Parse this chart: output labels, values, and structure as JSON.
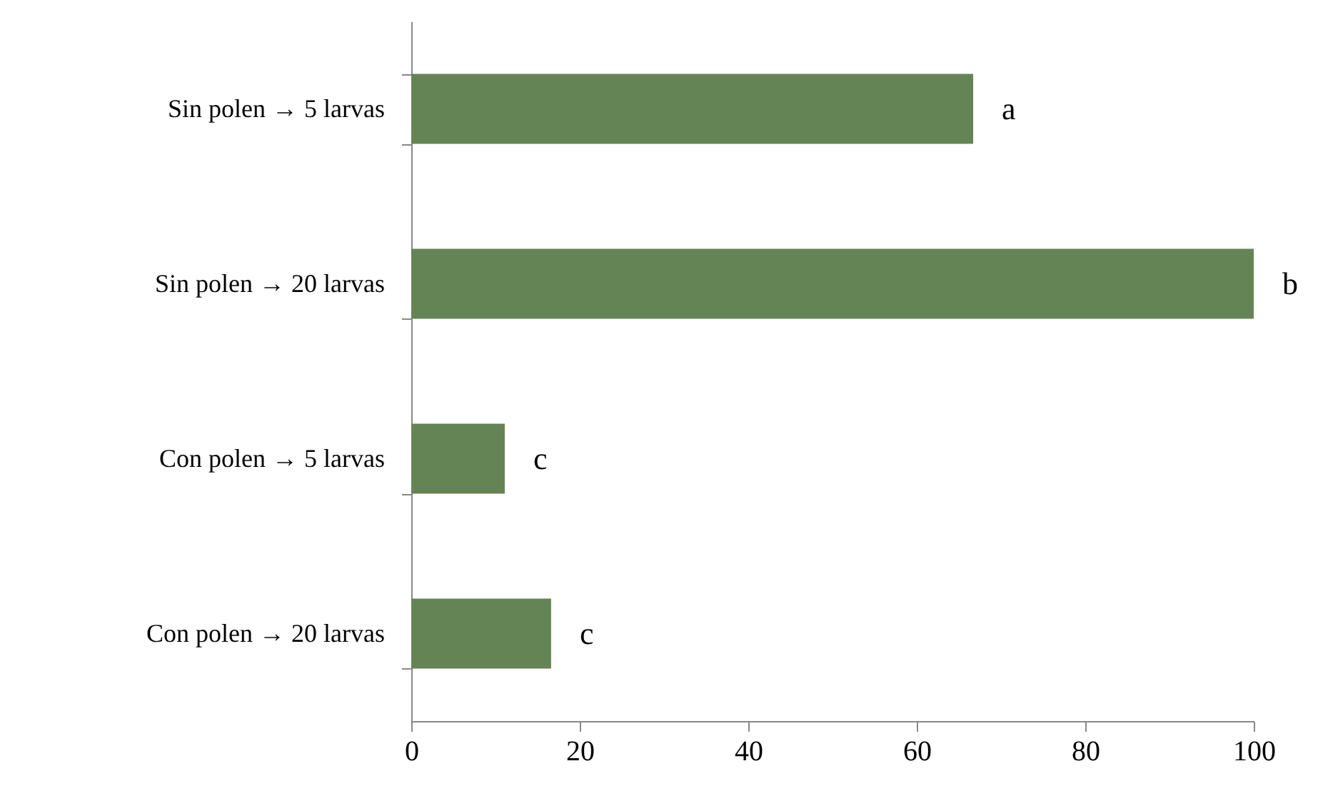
{
  "chart_data": {
    "type": "bar",
    "orientation": "horizontal",
    "categories": [
      "Sin polen → 5 larvas",
      "Sin polen → 20 larvas",
      "Con polen → 5 larvas",
      "Con polen → 20 larvas"
    ],
    "values": [
      66.7,
      100,
      11.1,
      16.6
    ],
    "color": "#658455",
    "xlim": [
      0,
      100
    ],
    "xticks": [
      0,
      20,
      40,
      60,
      80,
      100
    ],
    "grid": false,
    "annotations": [
      {
        "text": "a",
        "x": 66.7,
        "y": "Sin polen → 5 larvas"
      },
      {
        "text": "b",
        "x": 100,
        "y": "Sin polen → 20 larvas"
      },
      {
        "text": "c",
        "x": 11.1,
        "y": "Con polen → 5 larvas"
      },
      {
        "text": "c",
        "x": 16.6,
        "y": "Con polen → 20 larvas"
      }
    ]
  }
}
